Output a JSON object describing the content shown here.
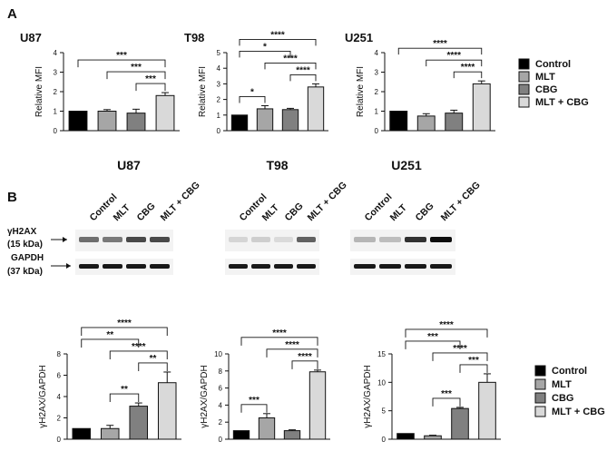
{
  "panel_labels": {
    "a": "A",
    "b": "B"
  },
  "legend": {
    "entries": [
      {
        "label": "Control",
        "color": "#000000"
      },
      {
        "label": "MLT",
        "color": "#a6a6a6"
      },
      {
        "label": "CBG",
        "color": "#808080"
      },
      {
        "label": "MLT + CBG",
        "color": "#d9d9d9"
      }
    ]
  },
  "blots": {
    "titles": [
      "U87",
      "T98",
      "U251"
    ],
    "lanes": [
      "Control",
      "MLT",
      "CBG",
      "MLT + CBG"
    ],
    "proteins": [
      {
        "name": "γH2AX",
        "size": "(15 kDa)"
      },
      {
        "name": "GAPDH",
        "size": "(37 kDa)"
      }
    ],
    "band_intensity": {
      "U87": {
        "h2ax": [
          0.55,
          0.5,
          0.7,
          0.7
        ],
        "gapdh": [
          0.9,
          0.9,
          0.9,
          0.9
        ]
      },
      "T98": {
        "h2ax": [
          0.12,
          0.15,
          0.1,
          0.6
        ],
        "gapdh": [
          0.9,
          0.9,
          0.9,
          0.9
        ]
      },
      "U251": {
        "h2ax": [
          0.25,
          0.22,
          0.8,
          0.95
        ],
        "gapdh": [
          0.9,
          0.9,
          0.9,
          0.9
        ]
      }
    }
  },
  "chart_data": [
    {
      "id": "a-u87",
      "type": "bar",
      "title": "U87",
      "ylabel": "Relative MFI",
      "categories": [
        "Control",
        "MLT",
        "CBG",
        "MLT + CBG"
      ],
      "values": [
        1.0,
        1.0,
        0.9,
        1.8
      ],
      "errors": [
        0.0,
        0.08,
        0.2,
        0.15
      ],
      "ylim": [
        0,
        4
      ],
      "yticks": [
        0,
        1,
        2,
        3,
        4
      ],
      "significance": [
        {
          "from": 0,
          "to": 3,
          "label": "***"
        },
        {
          "from": 1,
          "to": 3,
          "label": "***"
        },
        {
          "from": 2,
          "to": 3,
          "label": "***"
        }
      ]
    },
    {
      "id": "a-t98",
      "type": "bar",
      "title": "T98",
      "ylabel": "Relative MFI",
      "categories": [
        "Control",
        "MLT",
        "CBG",
        "MLT + CBG"
      ],
      "values": [
        1.0,
        1.4,
        1.35,
        2.8
      ],
      "errors": [
        0.0,
        0.2,
        0.08,
        0.2
      ],
      "ylim": [
        0,
        5
      ],
      "yticks": [
        0,
        1,
        2,
        3,
        4,
        5
      ],
      "significance": [
        {
          "from": 0,
          "to": 3,
          "label": "****"
        },
        {
          "from": 1,
          "to": 3,
          "label": "****"
        },
        {
          "from": 0,
          "to": 2,
          "label": "*"
        },
        {
          "from": 0,
          "to": 1,
          "label": "*"
        },
        {
          "from": 2,
          "to": 3,
          "label": "****"
        }
      ]
    },
    {
      "id": "a-u251",
      "type": "bar",
      "title": "U251",
      "ylabel": "Relative MFI",
      "categories": [
        "Control",
        "MLT",
        "CBG",
        "MLT + CBG"
      ],
      "values": [
        1.0,
        0.75,
        0.9,
        2.4
      ],
      "errors": [
        0.0,
        0.12,
        0.15,
        0.15
      ],
      "ylim": [
        0,
        4
      ],
      "yticks": [
        0,
        1,
        2,
        3,
        4
      ],
      "significance": [
        {
          "from": 0,
          "to": 3,
          "label": "****"
        },
        {
          "from": 1,
          "to": 3,
          "label": "****"
        },
        {
          "from": 2,
          "to": 3,
          "label": "****"
        }
      ]
    },
    {
      "id": "b-u87",
      "type": "bar",
      "title": "",
      "ylabel": "γH2AX/GAPDH",
      "categories": [
        "Control",
        "MLT",
        "CBG",
        "MLT + CBG"
      ],
      "values": [
        1.0,
        1.0,
        3.1,
        5.3
      ],
      "errors": [
        0.0,
        0.3,
        0.3,
        1.0
      ],
      "ylim": [
        0,
        8
      ],
      "yticks": [
        0,
        2,
        4,
        6,
        8
      ],
      "significance": [
        {
          "from": 0,
          "to": 3,
          "label": "****"
        },
        {
          "from": 1,
          "to": 3,
          "label": "****"
        },
        {
          "from": 0,
          "to": 2,
          "label": "**"
        },
        {
          "from": 1,
          "to": 2,
          "label": "**"
        },
        {
          "from": 2,
          "to": 3,
          "label": "**"
        }
      ]
    },
    {
      "id": "b-t98",
      "type": "bar",
      "title": "",
      "ylabel": "γH2AX/GAPDH",
      "categories": [
        "Control",
        "MLT",
        "CBG",
        "MLT + CBG"
      ],
      "values": [
        1.0,
        2.5,
        1.0,
        7.9
      ],
      "errors": [
        0.0,
        0.5,
        0.1,
        0.2
      ],
      "ylim": [
        0,
        10
      ],
      "yticks": [
        0,
        2,
        4,
        6,
        8,
        10
      ],
      "significance": [
        {
          "from": 0,
          "to": 3,
          "label": "****"
        },
        {
          "from": 1,
          "to": 3,
          "label": "****"
        },
        {
          "from": 0,
          "to": 1,
          "label": "***"
        },
        {
          "from": 2,
          "to": 3,
          "label": "****"
        }
      ]
    },
    {
      "id": "b-u251",
      "type": "bar",
      "title": "",
      "ylabel": "γH2AX/GAPDH",
      "categories": [
        "Control",
        "MLT",
        "CBG",
        "MLT + CBG"
      ],
      "values": [
        1.0,
        0.6,
        5.4,
        10.0
      ],
      "errors": [
        0.0,
        0.1,
        0.2,
        1.5
      ],
      "ylim": [
        0,
        15
      ],
      "yticks": [
        0,
        5,
        10,
        15
      ],
      "significance": [
        {
          "from": 0,
          "to": 3,
          "label": "****"
        },
        {
          "from": 1,
          "to": 3,
          "label": "****"
        },
        {
          "from": 0,
          "to": 2,
          "label": "***"
        },
        {
          "from": 1,
          "to": 2,
          "label": "***"
        },
        {
          "from": 2,
          "to": 3,
          "label": "***"
        }
      ]
    }
  ]
}
